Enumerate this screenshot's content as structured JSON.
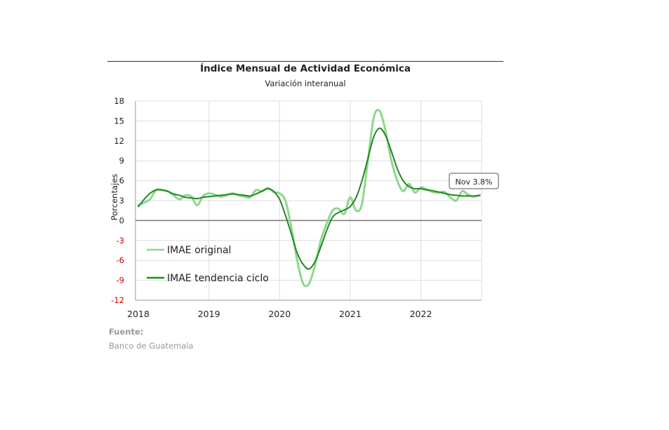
{
  "title": "Índice Mensual de Actividad Económica",
  "subtitle": "Variación interanual",
  "source_label": "Fuente:",
  "source_value": "Banco de Guatemala",
  "colors": {
    "original": "#8fd68f",
    "trend": "#1f8a1f",
    "negative_tick": "#cc0000",
    "grid": "#dddddd",
    "zero": "#777777"
  },
  "chart_data": {
    "type": "line",
    "ylabel": "Porcentajes",
    "ylim": [
      -12,
      18
    ],
    "yticks": [
      "18",
      "15",
      "12",
      "9",
      "6",
      "3",
      "0",
      "-3",
      "-6",
      "-9",
      "-12"
    ],
    "xticks": [
      "2018",
      "2019",
      "2020",
      "2021",
      "2022"
    ],
    "grid": true,
    "legend_position": "lower-left",
    "annotation": "Nov 3.8%",
    "x": [
      "2018-01",
      "2018-02",
      "2018-03",
      "2018-04",
      "2018-05",
      "2018-06",
      "2018-07",
      "2018-08",
      "2018-09",
      "2018-10",
      "2018-11",
      "2018-12",
      "2019-01",
      "2019-02",
      "2019-03",
      "2019-04",
      "2019-05",
      "2019-06",
      "2019-07",
      "2019-08",
      "2019-09",
      "2019-10",
      "2019-11",
      "2019-12",
      "2020-01",
      "2020-02",
      "2020-03",
      "2020-04",
      "2020-05",
      "2020-06",
      "2020-07",
      "2020-08",
      "2020-09",
      "2020-10",
      "2020-11",
      "2020-12",
      "2021-01",
      "2021-02",
      "2021-03",
      "2021-04",
      "2021-05",
      "2021-06",
      "2021-07",
      "2021-08",
      "2021-09",
      "2021-10",
      "2021-11",
      "2021-12",
      "2022-01",
      "2022-02",
      "2022-03",
      "2022-04",
      "2022-05",
      "2022-06",
      "2022-07",
      "2022-08",
      "2022-09",
      "2022-10",
      "2022-11"
    ],
    "series": [
      {
        "name": "IMAE original",
        "values": [
          2.3,
          2.7,
          3.2,
          4.6,
          4.6,
          4.4,
          3.8,
          3.2,
          3.8,
          3.6,
          2.3,
          3.7,
          4.1,
          3.9,
          3.6,
          3.8,
          4.1,
          3.8,
          3.6,
          3.5,
          4.6,
          4.4,
          4.9,
          4.3,
          4.1,
          3.0,
          -1.0,
          -6.0,
          -9.5,
          -9.5,
          -6.8,
          -3.0,
          -0.5,
          1.5,
          1.8,
          1.0,
          3.5,
          1.5,
          2.5,
          9.0,
          15.5,
          16.5,
          13.5,
          9.0,
          6.0,
          4.4,
          5.5,
          4.2,
          5.0,
          4.7,
          4.3,
          4.2,
          4.3,
          3.5,
          3.0,
          4.4,
          3.9,
          3.6,
          3.8
        ]
      },
      {
        "name": "IMAE tendencia ciclo",
        "values": [
          2.1,
          3.2,
          4.1,
          4.6,
          4.6,
          4.4,
          4.0,
          3.8,
          3.5,
          3.4,
          3.3,
          3.5,
          3.6,
          3.7,
          3.8,
          3.9,
          4.0,
          3.9,
          3.8,
          3.7,
          4.0,
          4.4,
          4.8,
          4.4,
          3.2,
          0.8,
          -2.0,
          -4.9,
          -6.6,
          -7.3,
          -6.2,
          -4.0,
          -1.5,
          0.5,
          1.2,
          1.6,
          2.1,
          3.5,
          6.0,
          9.3,
          12.6,
          13.9,
          12.8,
          10.4,
          7.8,
          6.0,
          5.1,
          4.8,
          4.8,
          4.6,
          4.5,
          4.3,
          4.1,
          3.9,
          3.8,
          3.7,
          3.7,
          3.7,
          3.8
        ]
      }
    ]
  }
}
